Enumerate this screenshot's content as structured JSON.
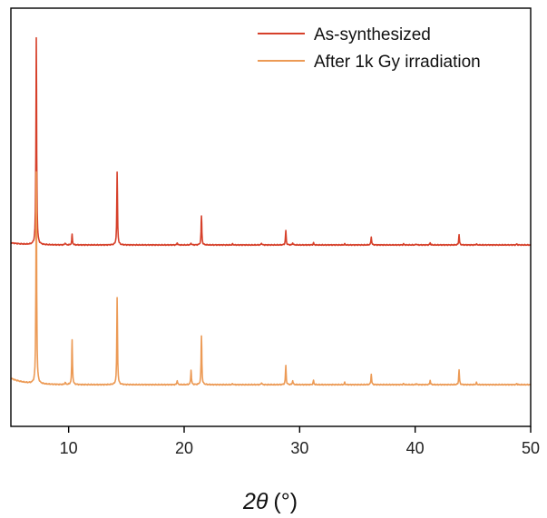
{
  "chart_data": {
    "type": "line",
    "xlabel_symbol": "2θ",
    "xlabel_unit": "(°)",
    "xlim": [
      5,
      50
    ],
    "x_ticks": [
      10,
      20,
      30,
      40,
      50
    ],
    "y_ticks_shown": false,
    "grid": false,
    "legend_position": "top-right",
    "series": [
      {
        "name": "As-synthesized",
        "color": "#d6402a",
        "offset": 1.0,
        "peaks": [
          [
            7.2,
            1.0
          ],
          [
            9.7,
            0.01
          ],
          [
            10.3,
            0.05
          ],
          [
            14.2,
            0.35
          ],
          [
            19.4,
            0.01
          ],
          [
            20.6,
            0.01
          ],
          [
            21.5,
            0.14
          ],
          [
            24.2,
            0.005
          ],
          [
            26.7,
            0.01
          ],
          [
            28.8,
            0.07
          ],
          [
            29.4,
            0.01
          ],
          [
            31.2,
            0.01
          ],
          [
            33.9,
            0.005
          ],
          [
            36.2,
            0.04
          ],
          [
            39.0,
            0.005
          ],
          [
            40.1,
            0.005
          ],
          [
            41.3,
            0.01
          ],
          [
            43.8,
            0.05
          ],
          [
            45.3,
            0.005
          ],
          [
            48.8,
            0.005
          ]
        ]
      },
      {
        "name": "After 1k Gy irradiation",
        "color": "#ec9a55",
        "offset": 0.0,
        "peaks": [
          [
            7.2,
            1.0
          ],
          [
            9.7,
            0.01
          ],
          [
            10.3,
            0.21
          ],
          [
            14.2,
            0.41
          ],
          [
            19.4,
            0.02
          ],
          [
            20.6,
            0.07
          ],
          [
            21.5,
            0.23
          ],
          [
            24.2,
            0.005
          ],
          [
            26.7,
            0.01
          ],
          [
            28.8,
            0.09
          ],
          [
            29.4,
            0.02
          ],
          [
            31.2,
            0.02
          ],
          [
            33.9,
            0.01
          ],
          [
            36.2,
            0.05
          ],
          [
            39.0,
            0.005
          ],
          [
            40.1,
            0.005
          ],
          [
            41.3,
            0.02
          ],
          [
            43.8,
            0.07
          ],
          [
            45.3,
            0.01
          ],
          [
            48.8,
            0.005
          ]
        ]
      }
    ]
  }
}
